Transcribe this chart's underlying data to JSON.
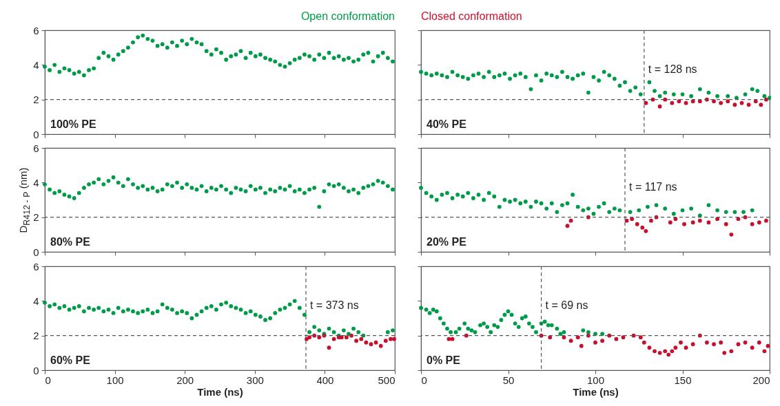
{
  "chart_data": [
    {
      "type": "scatter",
      "xlim": [
        0,
        500
      ],
      "xticks": [
        0,
        100,
        200,
        300,
        400,
        500
      ],
      "ylim": [
        0,
        6
      ],
      "yticks": [
        0,
        2,
        4,
        6
      ],
      "tick_labels": "y",
      "grid": false,
      "marker": "circle",
      "annotations": [
        "100% PE"
      ],
      "ref_lines": [
        {
          "axis": "y",
          "value": 2,
          "line_style": "dashed"
        }
      ],
      "series": [
        {
          "name": "Open conformation",
          "color": "#009b48",
          "x": [
            0,
            7,
            14,
            21,
            28,
            35,
            42,
            49,
            56,
            63,
            70,
            77,
            84,
            91,
            98,
            105,
            112,
            119,
            126,
            133,
            140,
            147,
            154,
            161,
            168,
            175,
            182,
            189,
            196,
            203,
            210,
            217,
            224,
            231,
            238,
            245,
            252,
            259,
            266,
            273,
            280,
            287,
            294,
            301,
            308,
            315,
            322,
            329,
            336,
            343,
            350,
            357,
            364,
            371,
            378,
            385,
            392,
            399,
            406,
            413,
            420,
            427,
            434,
            441,
            448,
            455,
            462,
            469,
            476,
            483,
            490,
            497
          ],
          "values": [
            3.9,
            3.7,
            4.0,
            3.6,
            3.8,
            3.7,
            3.5,
            3.6,
            3.4,
            3.7,
            3.8,
            4.4,
            4.7,
            4.5,
            4.3,
            4.6,
            4.8,
            5.0,
            5.3,
            5.6,
            5.7,
            5.5,
            5.4,
            5.1,
            5.2,
            5.0,
            5.3,
            5.1,
            5.4,
            5.2,
            5.5,
            5.3,
            5.2,
            4.8,
            4.6,
            4.9,
            4.7,
            4.3,
            4.5,
            4.6,
            4.8,
            4.4,
            4.7,
            4.5,
            4.6,
            4.4,
            4.3,
            4.2,
            4.0,
            3.9,
            4.1,
            4.3,
            4.4,
            4.6,
            4.5,
            4.3,
            4.6,
            4.4,
            4.7,
            4.4,
            4.5,
            4.3,
            4.4,
            4.2,
            4.3,
            4.6,
            4.7,
            4.2,
            4.5,
            4.7,
            4.4,
            4.2
          ]
        }
      ]
    },
    {
      "type": "scatter",
      "xlim": [
        0,
        200
      ],
      "xticks": [
        0,
        50,
        100,
        150,
        200
      ],
      "ylim": [
        0,
        6
      ],
      "yticks": [
        0,
        2,
        4,
        6
      ],
      "tick_labels": false,
      "grid": false,
      "marker": "circle",
      "annotations": [
        "40% PE"
      ],
      "ref_lines": [
        {
          "axis": "y",
          "value": 2,
          "line_style": "dashed"
        },
        {
          "axis": "x",
          "value": 128,
          "label": "t = 128 ns",
          "line_style": "dashed"
        }
      ],
      "series": [
        {
          "color": "#009b48",
          "x": [
            0,
            3,
            6,
            9,
            12,
            15,
            18,
            21,
            24,
            27,
            30,
            33,
            36,
            39,
            42,
            45,
            48,
            51,
            54,
            57,
            60,
            63,
            66,
            69,
            72,
            75,
            78,
            81,
            84,
            87,
            90,
            93,
            96,
            99,
            102,
            105,
            108,
            111,
            114,
            117,
            120,
            123,
            126,
            131,
            134,
            137,
            140,
            145,
            150,
            155,
            160,
            165,
            170,
            176,
            181,
            186,
            190,
            193,
            197,
            200
          ],
          "values": [
            3.6,
            3.5,
            3.4,
            3.5,
            3.4,
            3.3,
            3.6,
            3.4,
            3.3,
            3.2,
            3.4,
            3.5,
            3.3,
            3.6,
            3.3,
            3.4,
            3.5,
            3.2,
            3.4,
            3.5,
            3.3,
            2.6,
            3.4,
            3.1,
            3.5,
            3.4,
            3.3,
            3.6,
            3.3,
            3.2,
            3.4,
            3.5,
            2.4,
            3.3,
            3.1,
            3.6,
            3.4,
            3.2,
            2.8,
            3.0,
            2.5,
            2.7,
            2.3,
            3.0,
            2.5,
            2.2,
            2.4,
            2.3,
            2.3,
            2.2,
            2.6,
            2.4,
            2.2,
            2.2,
            2.1,
            2.3,
            2.6,
            2.5,
            2.2,
            2.1
          ]
        },
        {
          "name": "Closed conformation",
          "color": "#c8102e",
          "x": [
            129,
            133,
            137,
            140,
            144,
            148,
            152,
            156,
            160,
            164,
            168,
            172,
            176,
            180,
            184,
            188,
            192,
            195,
            198
          ],
          "values": [
            1.8,
            2.0,
            1.6,
            2.0,
            1.8,
            1.9,
            1.8,
            1.9,
            1.9,
            2.0,
            1.9,
            1.8,
            1.9,
            1.7,
            1.8,
            1.7,
            1.9,
            1.7,
            2.0
          ]
        }
      ]
    },
    {
      "type": "scatter",
      "xlim": [
        0,
        500
      ],
      "xticks": [
        0,
        100,
        200,
        300,
        400,
        500
      ],
      "ylim": [
        0,
        6
      ],
      "yticks": [
        0,
        2,
        4,
        6
      ],
      "tick_labels": "y",
      "ylabel": "D$_{R412 - P}$ (nm)",
      "grid": false,
      "marker": "circle",
      "annotations": [
        "80% PE"
      ],
      "ref_lines": [
        {
          "axis": "y",
          "value": 2,
          "line_style": "dashed"
        }
      ],
      "series": [
        {
          "color": "#009b48",
          "x": [
            0,
            7,
            14,
            21,
            28,
            35,
            42,
            49,
            56,
            63,
            70,
            77,
            84,
            91,
            98,
            105,
            112,
            119,
            126,
            133,
            140,
            147,
            154,
            161,
            168,
            175,
            182,
            189,
            196,
            203,
            210,
            217,
            224,
            231,
            238,
            245,
            252,
            259,
            266,
            273,
            280,
            287,
            294,
            301,
            308,
            315,
            322,
            329,
            336,
            343,
            350,
            357,
            364,
            371,
            378,
            385,
            392,
            399,
            406,
            413,
            420,
            427,
            434,
            441,
            448,
            455,
            462,
            469,
            476,
            483,
            490,
            497
          ],
          "values": [
            3.9,
            3.6,
            3.4,
            3.5,
            3.3,
            3.2,
            3.1,
            3.4,
            3.7,
            3.9,
            4.0,
            4.2,
            3.9,
            4.1,
            4.3,
            4.0,
            3.8,
            4.2,
            3.9,
            3.7,
            3.8,
            3.6,
            3.7,
            3.5,
            3.6,
            3.9,
            3.8,
            4.0,
            3.7,
            3.9,
            3.7,
            3.6,
            3.8,
            3.5,
            3.7,
            3.6,
            3.8,
            3.6,
            3.4,
            3.7,
            3.6,
            3.5,
            3.8,
            3.6,
            3.7,
            3.4,
            3.6,
            3.5,
            3.7,
            3.6,
            3.8,
            3.5,
            3.6,
            3.4,
            3.6,
            3.7,
            2.6,
            3.5,
            3.9,
            3.8,
            3.9,
            3.7,
            3.5,
            3.6,
            3.4,
            3.7,
            3.8,
            3.9,
            4.1,
            4.0,
            3.8,
            3.6
          ]
        }
      ]
    },
    {
      "type": "scatter",
      "xlim": [
        0,
        200
      ],
      "xticks": [
        0,
        50,
        100,
        150,
        200
      ],
      "ylim": [
        0,
        6
      ],
      "yticks": [
        0,
        2,
        4,
        6
      ],
      "tick_labels": false,
      "grid": false,
      "marker": "circle",
      "annotations": [
        "20% PE"
      ],
      "ref_lines": [
        {
          "axis": "y",
          "value": 2,
          "line_style": "dashed"
        },
        {
          "axis": "x",
          "value": 117,
          "label": "t = 117 ns",
          "line_style": "dashed"
        }
      ],
      "series": [
        {
          "color": "#009b48",
          "x": [
            0,
            3,
            6,
            9,
            12,
            15,
            18,
            21,
            24,
            27,
            30,
            33,
            36,
            39,
            42,
            45,
            48,
            51,
            54,
            57,
            60,
            63,
            66,
            69,
            72,
            75,
            78,
            81,
            84,
            87,
            90,
            93,
            96,
            99,
            102,
            105,
            108,
            111,
            114,
            120,
            125,
            130,
            135,
            140,
            145,
            150,
            155,
            160,
            165,
            170,
            175,
            180,
            185,
            190
          ],
          "values": [
            3.7,
            3.4,
            3.2,
            3.0,
            3.3,
            3.4,
            3.1,
            3.3,
            3.2,
            3.4,
            3.1,
            3.3,
            3.0,
            3.4,
            3.2,
            2.6,
            3.0,
            2.9,
            3.0,
            2.8,
            2.9,
            2.6,
            2.9,
            2.8,
            2.5,
            2.8,
            2.3,
            2.7,
            2.8,
            3.3,
            2.6,
            2.4,
            2.5,
            2.2,
            2.6,
            2.8,
            2.3,
            2.5,
            2.4,
            2.3,
            2.4,
            2.6,
            2.7,
            2.5,
            2.2,
            2.4,
            2.5,
            2.1,
            2.7,
            2.4,
            2.3,
            2.3,
            2.3,
            2.4
          ]
        },
        {
          "color": "#c8102e",
          "x": [
            84,
            86,
            96,
            118,
            121,
            124,
            127,
            129,
            132,
            135,
            143,
            146,
            151,
            156,
            160,
            165,
            170,
            175,
            178,
            182,
            186,
            190,
            194,
            198
          ],
          "values": [
            1.5,
            1.8,
            2.0,
            1.8,
            1.9,
            1.6,
            1.4,
            1.2,
            1.8,
            2.0,
            1.7,
            1.9,
            1.6,
            1.7,
            1.8,
            1.7,
            1.9,
            1.6,
            1.0,
            1.9,
            2.0,
            1.6,
            1.7,
            1.8
          ]
        }
      ]
    },
    {
      "type": "scatter",
      "xlim": [
        0,
        500
      ],
      "xticks": [
        0,
        100,
        200,
        300,
        400,
        500
      ],
      "ylim": [
        0,
        6
      ],
      "yticks": [
        0,
        2,
        4,
        6
      ],
      "xlabel": "Time (ns)",
      "grid": false,
      "marker": "circle",
      "annotations": [
        "60% PE"
      ],
      "ref_lines": [
        {
          "axis": "y",
          "value": 2,
          "line_style": "dashed"
        },
        {
          "axis": "x",
          "value": 373,
          "label": "t = 373 ns",
          "line_style": "dashed"
        }
      ],
      "series": [
        {
          "color": "#009b48",
          "x": [
            0,
            7,
            14,
            21,
            28,
            35,
            42,
            49,
            56,
            63,
            70,
            77,
            84,
            91,
            98,
            105,
            112,
            119,
            126,
            133,
            140,
            147,
            154,
            161,
            168,
            175,
            182,
            189,
            196,
            203,
            210,
            217,
            224,
            231,
            238,
            245,
            252,
            259,
            266,
            273,
            280,
            287,
            294,
            301,
            308,
            315,
            322,
            329,
            336,
            343,
            350,
            357,
            364,
            371,
            378,
            385,
            392,
            399,
            406,
            413,
            420,
            427,
            434,
            441,
            448,
            455,
            490,
            497
          ],
          "values": [
            3.9,
            3.7,
            3.8,
            3.6,
            3.7,
            3.5,
            3.6,
            3.7,
            3.4,
            3.6,
            3.5,
            3.6,
            3.4,
            3.5,
            3.3,
            3.6,
            3.4,
            3.5,
            3.4,
            3.3,
            3.4,
            3.5,
            3.3,
            3.4,
            3.8,
            3.6,
            3.5,
            3.3,
            3.4,
            3.3,
            3.0,
            3.2,
            3.4,
            3.6,
            3.7,
            3.5,
            3.8,
            3.9,
            3.7,
            3.6,
            3.5,
            3.3,
            3.4,
            3.2,
            3.1,
            2.9,
            3.0,
            3.3,
            3.5,
            3.6,
            3.8,
            4.0,
            3.6,
            3.2,
            2.2,
            2.5,
            2.3,
            2.1,
            2.4,
            2.2,
            2.0,
            2.3,
            2.1,
            2.4,
            2.2,
            2.0,
            2.2,
            2.3
          ]
        },
        {
          "color": "#c8102e",
          "x": [
            374,
            378,
            385,
            392,
            399,
            406,
            413,
            420,
            424,
            431,
            438,
            445,
            452,
            459,
            466,
            473,
            480,
            487,
            494,
            499
          ],
          "values": [
            1.8,
            1.9,
            2.0,
            1.9,
            2.0,
            1.3,
            1.8,
            1.9,
            1.9,
            1.9,
            2.0,
            1.7,
            1.8,
            1.6,
            1.5,
            1.6,
            1.4,
            1.7,
            1.8,
            1.8
          ]
        }
      ]
    },
    {
      "type": "scatter",
      "xlim": [
        0,
        200
      ],
      "xticks": [
        0,
        50,
        100,
        150,
        200
      ],
      "ylim": [
        0,
        6
      ],
      "yticks": [
        0,
        2,
        4,
        6
      ],
      "xlabel": "Time (ns)",
      "tick_labels": "x",
      "grid": false,
      "marker": "circle",
      "annotations": [
        "0% PE"
      ],
      "ref_lines": [
        {
          "axis": "y",
          "value": 2,
          "line_style": "dashed"
        },
        {
          "axis": "x",
          "value": 69,
          "label": "t = 69 ns",
          "line_style": "dashed"
        }
      ],
      "series": [
        {
          "color": "#009b48",
          "x": [
            0,
            3,
            5,
            7,
            9,
            11,
            13,
            15,
            17,
            20,
            22,
            25,
            27,
            29,
            31,
            34,
            36,
            38,
            40,
            42,
            44,
            46,
            48,
            50,
            52,
            54,
            56,
            58,
            60,
            62,
            64,
            66,
            69,
            71,
            73,
            75,
            78,
            80,
            82,
            93,
            96,
            100,
            104
          ],
          "values": [
            3.6,
            3.5,
            3.3,
            3.5,
            3.4,
            3.0,
            2.7,
            2.4,
            2.2,
            2.2,
            2.4,
            2.7,
            2.4,
            2.3,
            2.2,
            2.6,
            2.7,
            2.5,
            2.2,
            2.6,
            2.5,
            2.9,
            3.2,
            3.4,
            3.2,
            2.7,
            2.5,
            3.0,
            3.1,
            2.7,
            2.5,
            2.2,
            2.7,
            2.8,
            2.6,
            2.6,
            2.4,
            2.1,
            2.2,
            2.3,
            2.2,
            2.1,
            2.1
          ]
        },
        {
          "color": "#c8102e",
          "x": [
            16,
            18,
            26,
            69,
            74,
            82,
            86,
            90,
            92,
            96,
            100,
            104,
            108,
            112,
            116,
            122,
            126,
            128,
            131,
            134,
            137,
            140,
            142,
            144,
            146,
            149,
            152,
            156,
            160,
            164,
            168,
            172,
            174,
            178,
            182,
            186,
            190,
            194,
            197,
            199
          ],
          "values": [
            1.8,
            1.8,
            2.0,
            2.0,
            1.9,
            1.9,
            1.7,
            1.9,
            1.4,
            2.0,
            1.6,
            1.7,
            2.0,
            1.8,
            1.9,
            2.0,
            1.9,
            1.6,
            1.3,
            1.1,
            1.0,
            1.1,
            0.9,
            1.1,
            1.3,
            1.6,
            1.3,
            1.5,
            2.0,
            1.6,
            1.5,
            1.6,
            1.0,
            1.1,
            1.5,
            1.6,
            1.3,
            1.6,
            1.1,
            1.4
          ]
        }
      ]
    }
  ]
}
